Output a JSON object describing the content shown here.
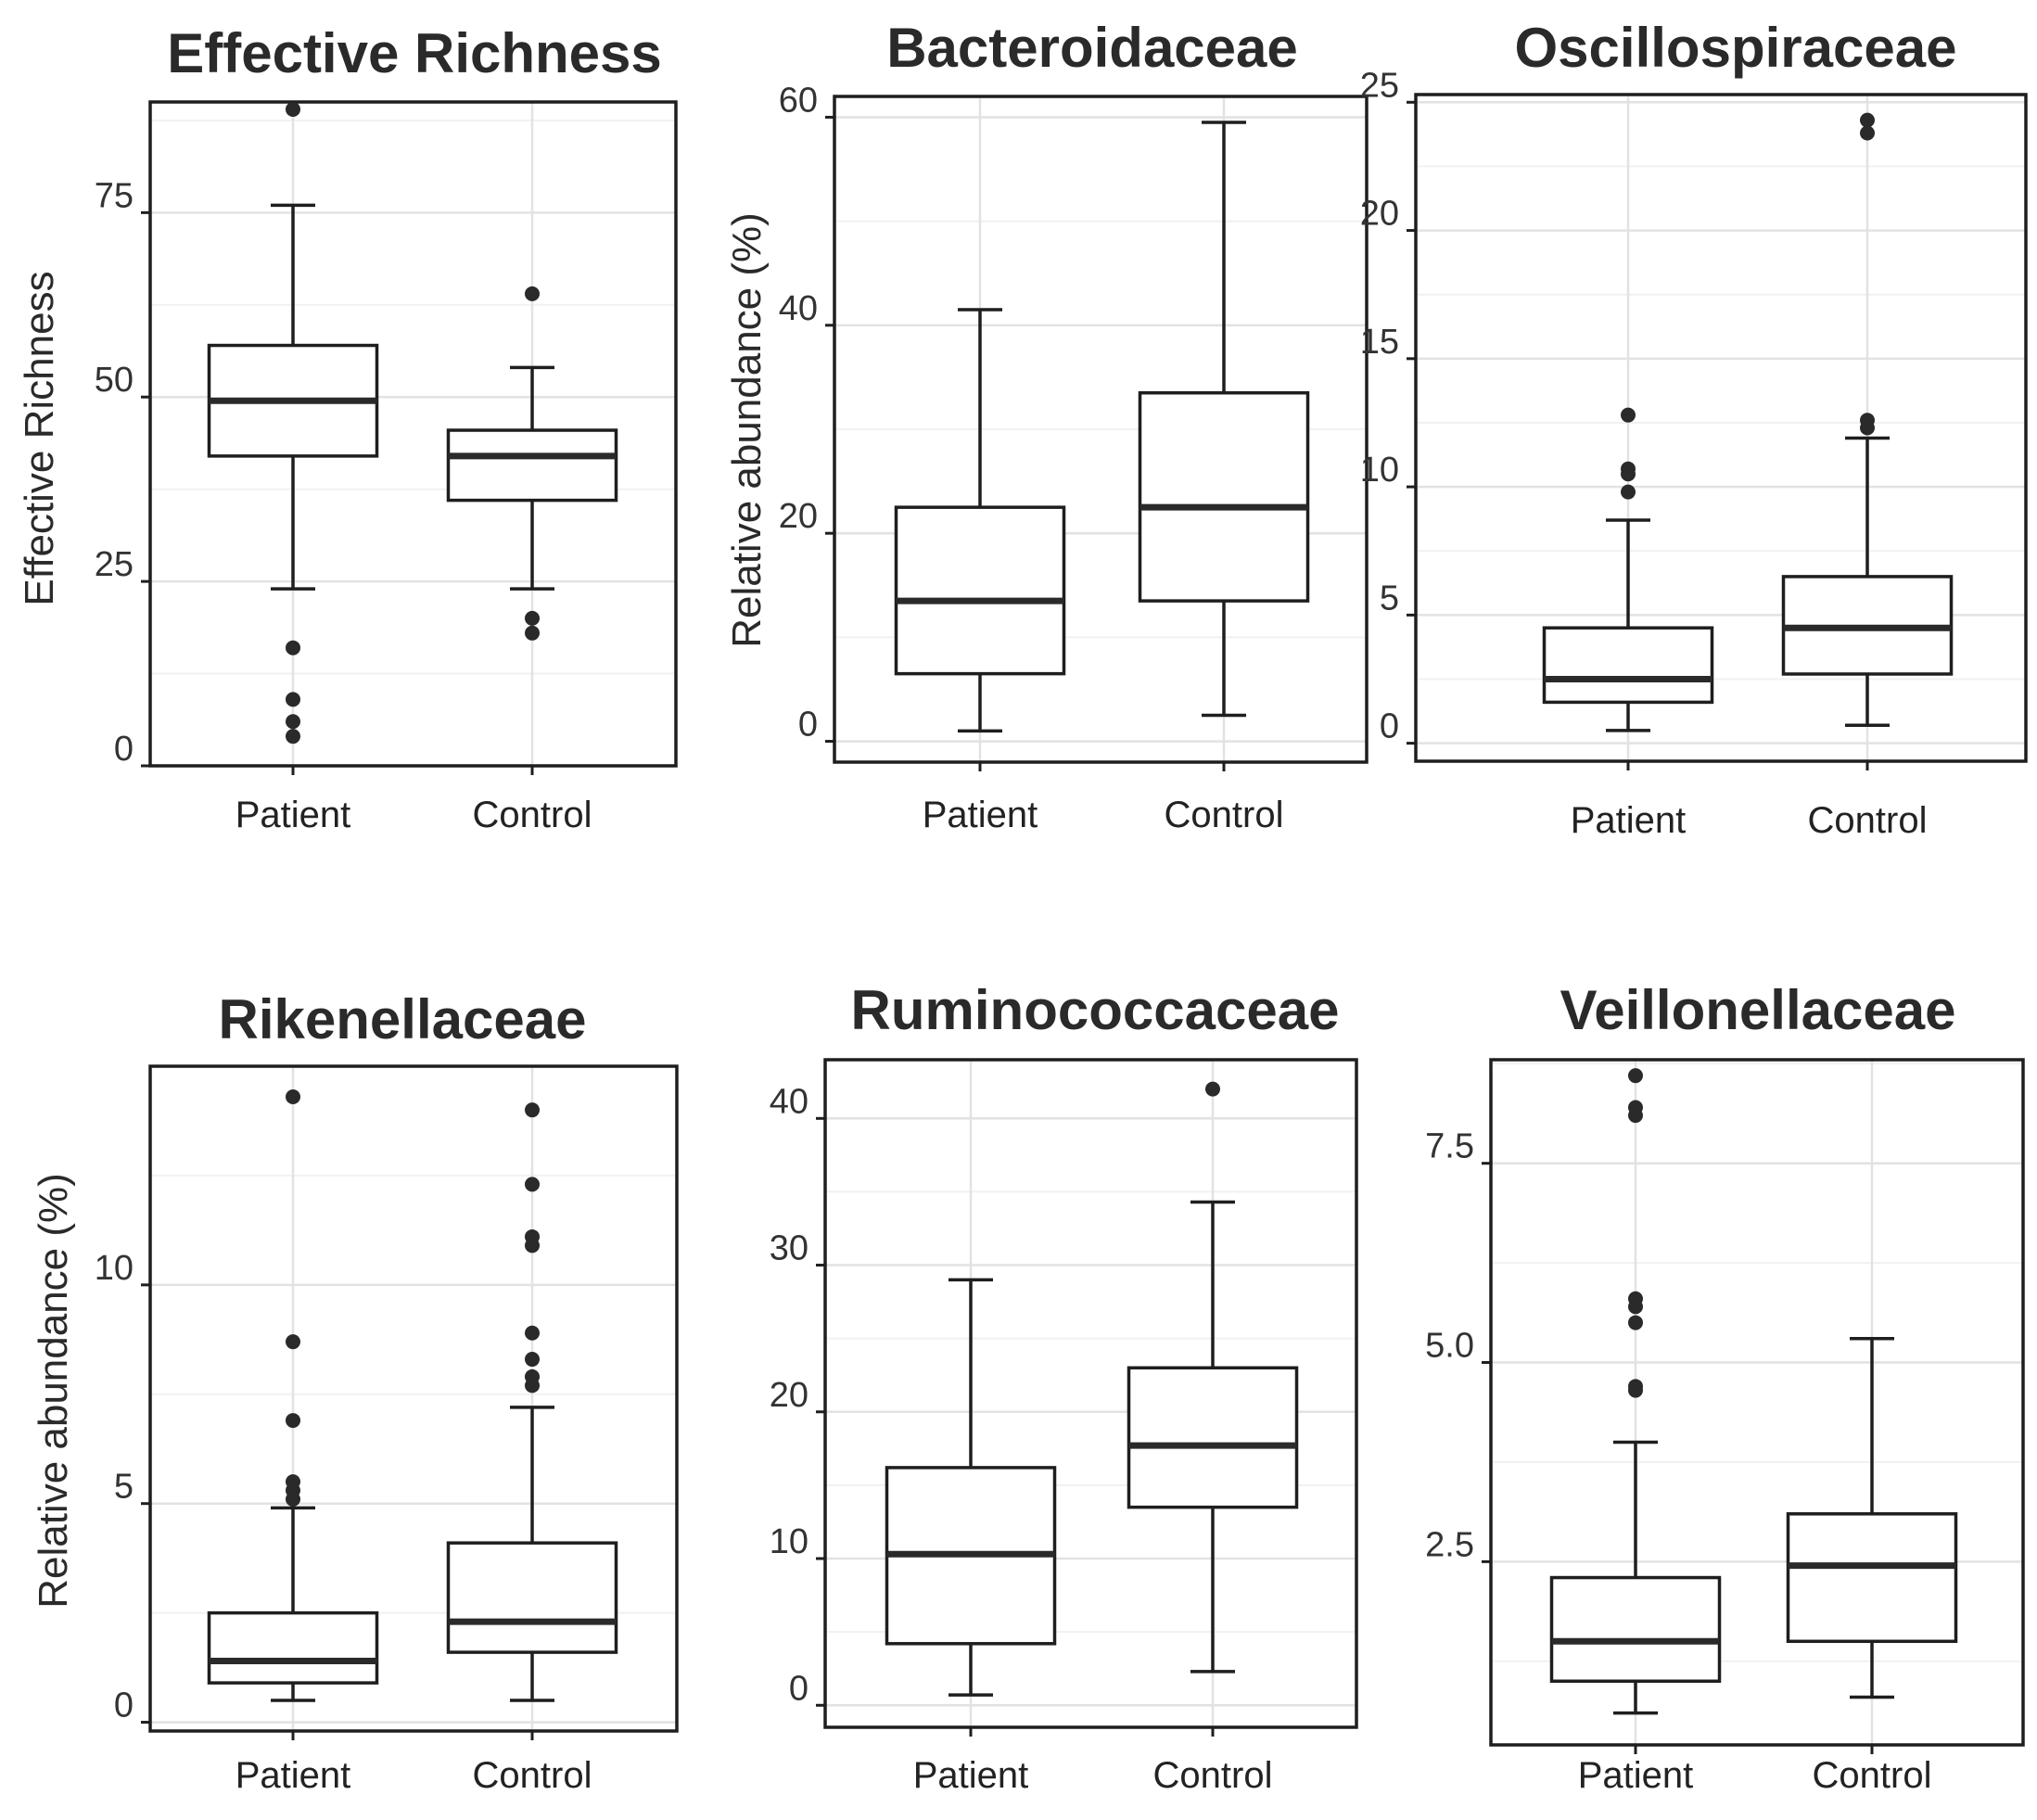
{
  "chart_data": [
    {
      "type": "boxplot",
      "title": "Effective Richness",
      "ylabel": "Effective Richness",
      "ylim": [
        0,
        90
      ],
      "yticks": [
        0,
        25,
        50,
        75
      ],
      "ytick_labels": [
        "0",
        "25",
        "50",
        "75"
      ],
      "categories": [
        "Patient",
        "Control"
      ],
      "boxes": [
        {
          "category": "Patient",
          "min": 24,
          "q1": 42,
          "median": 49.5,
          "q3": 57,
          "max": 76,
          "outliers": [
            89,
            16,
            9,
            6,
            4
          ]
        },
        {
          "category": "Control",
          "min": 24,
          "q1": 36,
          "median": 42,
          "q3": 45.5,
          "max": 54,
          "outliers": [
            64,
            20,
            18
          ]
        }
      ],
      "grid": true
    },
    {
      "type": "boxplot",
      "title": "Bacteroidaceae",
      "ylabel": "Relative abundance (%)",
      "ylim": [
        -2,
        62
      ],
      "yticks": [
        0,
        20,
        40,
        60
      ],
      "ytick_labels": [
        "0",
        "20",
        "40",
        "60"
      ],
      "categories": [
        "Patient",
        "Control"
      ],
      "boxes": [
        {
          "category": "Patient",
          "min": 1,
          "q1": 6.5,
          "median": 13.5,
          "q3": 22.5,
          "max": 41.5,
          "outliers": []
        },
        {
          "category": "Control",
          "min": 2.5,
          "q1": 13.5,
          "median": 22.5,
          "q3": 33.5,
          "max": 59.5,
          "outliers": []
        }
      ],
      "grid": true
    },
    {
      "type": "boxplot",
      "title": "Oscillospiraceae",
      "ylabel": "",
      "ylim": [
        -0.7,
        25.3
      ],
      "yticks": [
        0,
        5,
        10,
        15,
        20,
        25
      ],
      "ytick_labels": [
        "0",
        "5",
        "10",
        "15",
        "20",
        "25"
      ],
      "categories": [
        "Patient",
        "Control"
      ],
      "boxes": [
        {
          "category": "Patient",
          "min": 0.5,
          "q1": 1.6,
          "median": 2.5,
          "q3": 4.5,
          "max": 8.7,
          "outliers": [
            12.8,
            10.7,
            10.5,
            9.8
          ]
        },
        {
          "category": "Control",
          "min": 0.7,
          "q1": 2.7,
          "median": 4.5,
          "q3": 6.5,
          "max": 11.9,
          "outliers": [
            24.3,
            23.8,
            12.6,
            12.3
          ]
        }
      ],
      "grid": true
    },
    {
      "type": "boxplot",
      "title": "Rikenellaceae",
      "ylabel": "Relative abundance (%)",
      "ylim": [
        -0.2,
        15
      ],
      "yticks": [
        0,
        5,
        10
      ],
      "ytick_labels": [
        "0",
        "5",
        "10"
      ],
      "categories": [
        "Patient",
        "Control"
      ],
      "boxes": [
        {
          "category": "Patient",
          "min": 0.5,
          "q1": 0.9,
          "median": 1.4,
          "q3": 2.5,
          "max": 4.9,
          "outliers": [
            14.3,
            8.7,
            6.9,
            5.5,
            5.3,
            5.1
          ]
        },
        {
          "category": "Control",
          "min": 0.5,
          "q1": 1.6,
          "median": 2.3,
          "q3": 4.1,
          "max": 7.2,
          "outliers": [
            14.0,
            12.3,
            11.1,
            10.9,
            8.9,
            8.3,
            7.9,
            7.7
          ]
        }
      ],
      "grid": true
    },
    {
      "type": "boxplot",
      "title": "Ruminococcaceae",
      "ylabel": "",
      "ylim": [
        -1.5,
        44
      ],
      "yticks": [
        0,
        10,
        20,
        30,
        40
      ],
      "ytick_labels": [
        "0",
        "10",
        "20",
        "30",
        "40"
      ],
      "categories": [
        "Patient",
        "Control"
      ],
      "boxes": [
        {
          "category": "Patient",
          "min": 0.7,
          "q1": 4.2,
          "median": 10.3,
          "q3": 16.2,
          "max": 29.0,
          "outliers": []
        },
        {
          "category": "Control",
          "min": 2.3,
          "q1": 13.5,
          "median": 17.7,
          "q3": 23.0,
          "max": 34.3,
          "outliers": [
            42.0
          ]
        }
      ],
      "grid": true
    },
    {
      "type": "boxplot",
      "title": "Veillonellaceae",
      "ylabel": "",
      "ylim": [
        0.2,
        8.8
      ],
      "yticks": [
        2.5,
        5.0,
        7.5
      ],
      "ytick_labels": [
        "2.5",
        "5.0",
        "7.5"
      ],
      "categories": [
        "Patient",
        "Control"
      ],
      "boxes": [
        {
          "category": "Patient",
          "min": 0.6,
          "q1": 1.0,
          "median": 1.5,
          "q3": 2.3,
          "max": 4.0,
          "outliers": [
            8.6,
            8.2,
            8.1,
            5.8,
            5.7,
            5.5,
            4.7,
            4.65
          ]
        },
        {
          "category": "Control",
          "min": 0.8,
          "q1": 1.5,
          "median": 2.45,
          "q3": 3.1,
          "max": 5.3,
          "outliers": []
        }
      ],
      "grid": true
    }
  ]
}
